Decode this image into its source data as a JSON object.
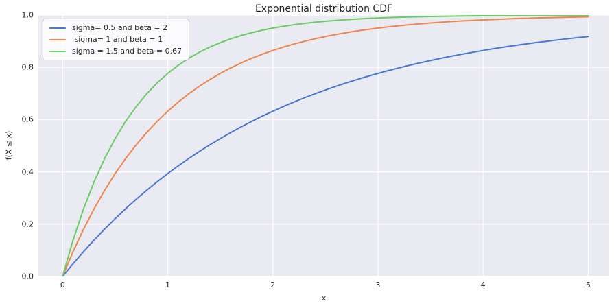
{
  "chart_data": {
    "type": "line",
    "title": "Exponential distribution CDF",
    "xlabel": "x",
    "ylabel": "f(X ≤ x)",
    "xlim": [
      -0.23,
      5.2
    ],
    "ylim": [
      0,
      1
    ],
    "xticks": [
      0,
      1,
      2,
      3,
      4,
      5
    ],
    "xtick_labels": [
      "0",
      "1",
      "2",
      "3",
      "4",
      "5"
    ],
    "yticks": [
      0,
      0.2,
      0.4,
      0.6,
      0.8,
      1.0
    ],
    "ytick_labels": [
      "0.0",
      "0.2",
      "0.4",
      "0.6",
      "0.8",
      "1.0"
    ],
    "grid": true,
    "grid_color": "#ffffff",
    "plot_background": "#eaeaf2",
    "figure_background": "#ffffff",
    "legend_position": "upper left",
    "x": [
      0,
      0.1,
      0.2,
      0.3,
      0.4,
      0.5,
      0.6,
      0.7,
      0.8,
      0.9,
      1.0,
      1.1,
      1.2,
      1.3,
      1.4,
      1.5,
      1.6,
      1.7,
      1.8,
      1.9,
      2.0,
      2.1,
      2.2,
      2.3,
      2.4,
      2.5,
      2.6,
      2.7,
      2.8,
      2.9,
      3.0,
      3.1,
      3.2,
      3.3,
      3.4,
      3.5,
      3.6,
      3.7,
      3.8,
      3.9,
      4.0,
      4.1,
      4.2,
      4.3,
      4.4,
      4.5,
      4.6,
      4.7,
      4.8,
      4.9,
      5.0
    ],
    "series": [
      {
        "name": "sigma= 0.5 and beta = 2",
        "sigma": 0.5,
        "beta": 2,
        "color": "#4878d0",
        "y": [
          0.0,
          0.0488,
          0.0952,
          0.1393,
          0.1813,
          0.2212,
          0.2592,
          0.2953,
          0.3297,
          0.3624,
          0.3935,
          0.4231,
          0.4512,
          0.478,
          0.5034,
          0.5276,
          0.5507,
          0.5726,
          0.5934,
          0.6133,
          0.6321,
          0.6501,
          0.6671,
          0.6834,
          0.6988,
          0.7135,
          0.7275,
          0.7408,
          0.7534,
          0.7654,
          0.7769,
          0.7878,
          0.7981,
          0.808,
          0.8173,
          0.8262,
          0.8347,
          0.8428,
          0.8504,
          0.8577,
          0.8647,
          0.8713,
          0.8775,
          0.8835,
          0.8892,
          0.8946,
          0.8997,
          0.9046,
          0.9093,
          0.9137,
          0.9179
        ]
      },
      {
        "name": " sigma= 1 and beta = 1",
        "sigma": 1,
        "beta": 1,
        "color": "#ee854a",
        "y": [
          0.0,
          0.0952,
          0.1813,
          0.2592,
          0.3297,
          0.3935,
          0.4512,
          0.5034,
          0.5507,
          0.5934,
          0.6321,
          0.6671,
          0.6988,
          0.7275,
          0.7534,
          0.7769,
          0.7981,
          0.8173,
          0.8347,
          0.8504,
          0.8647,
          0.8775,
          0.8892,
          0.8997,
          0.9093,
          0.9179,
          0.9257,
          0.9328,
          0.9392,
          0.945,
          0.9502,
          0.955,
          0.9592,
          0.9631,
          0.9666,
          0.9698,
          0.9727,
          0.9753,
          0.9776,
          0.9798,
          0.9817,
          0.9834,
          0.985,
          0.9864,
          0.9877,
          0.9889,
          0.9899,
          0.9909,
          0.9918,
          0.9926,
          0.9933
        ]
      },
      {
        "name": "sigma = 1.5 and beta = 0.67",
        "sigma": 1.5,
        "beta": 0.67,
        "color": "#6acc64",
        "y": [
          0.0,
          0.1393,
          0.2592,
          0.3624,
          0.4512,
          0.5276,
          0.5934,
          0.6501,
          0.6988,
          0.7408,
          0.7769,
          0.808,
          0.8347,
          0.8577,
          0.8775,
          0.8946,
          0.9093,
          0.9219,
          0.9328,
          0.9422,
          0.9502,
          0.9571,
          0.9631,
          0.9683,
          0.9727,
          0.9765,
          0.9798,
          0.9826,
          0.985,
          0.9871,
          0.9889,
          0.9904,
          0.9918,
          0.9929,
          0.9939,
          0.9948,
          0.9955,
          0.9961,
          0.9967,
          0.9971,
          0.9975,
          0.9979,
          0.9982,
          0.9984,
          0.9986,
          0.9988,
          0.999,
          0.9991,
          0.9993,
          0.9994,
          0.9994
        ]
      }
    ]
  }
}
